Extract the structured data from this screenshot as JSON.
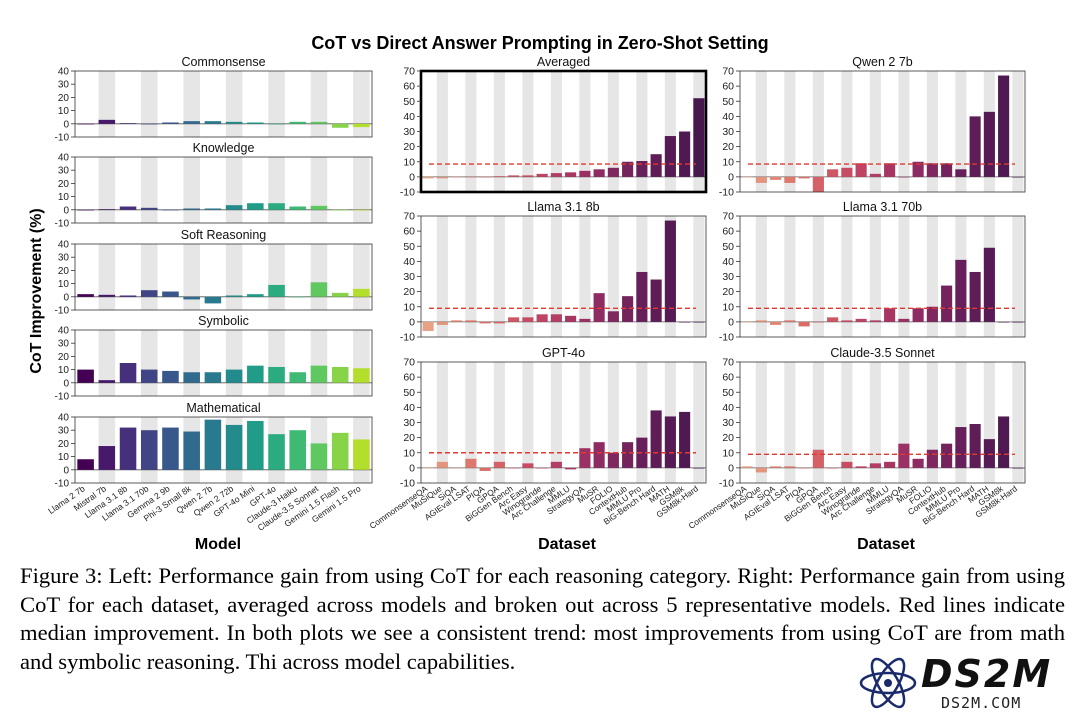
{
  "figure_title": "CoT vs Direct Answer Prompting in Zero-Shot Setting",
  "ylabel": "CoT Improvement (%)",
  "left_xlabel": "Model",
  "right_xlabel": "Dataset",
  "colors": {
    "median_line": "#e03a2f",
    "grid_band": "#e6e6e6",
    "highlight_frame": "#000000"
  },
  "chart_data": [
    {
      "type": "bar",
      "title": "Commonsense",
      "xlabel": "",
      "ylabel": "",
      "ylim": [
        -10,
        40
      ],
      "yticks": [
        -10,
        0,
        10,
        20,
        30,
        40
      ],
      "categories": [
        "Llama 2 7b",
        "Mistral 7b",
        "Llama 3.1 8b",
        "Llama 3.1 70b",
        "Gemma 2 9b",
        "Phi-3 Small 8k",
        "Qwen 2 7b",
        "Qwen 2 72b",
        "GPT-4o Mini",
        "GPT-4o",
        "Claude-3 Haiku",
        "Claude-3.5 Sonnet",
        "Gemini 1.5 Flash",
        "Gemini 1.5 Pro"
      ],
      "values": [
        0,
        3,
        0.5,
        0,
        1,
        2,
        2,
        1.5,
        1,
        0,
        1.5,
        1.5,
        -3,
        -2.5
      ]
    },
    {
      "type": "bar",
      "title": "Knowledge",
      "xlabel": "",
      "ylabel": "",
      "ylim": [
        -10,
        40
      ],
      "yticks": [
        -10,
        0,
        10,
        20,
        30,
        40
      ],
      "categories": [
        "Llama 2 7b",
        "Mistral 7b",
        "Llama 3.1 8b",
        "Llama 3.1 70b",
        "Gemma 2 9b",
        "Phi-3 Small 8k",
        "Qwen 2 7b",
        "Qwen 2 72b",
        "GPT-4o Mini",
        "GPT-4o",
        "Claude-3 Haiku",
        "Claude-3.5 Sonnet",
        "Gemini 1.5 Flash",
        "Gemini 1.5 Pro"
      ],
      "values": [
        0,
        0.5,
        2.5,
        1.5,
        0,
        1,
        1,
        3.5,
        5,
        5,
        2.5,
        3,
        0,
        0
      ]
    },
    {
      "type": "bar",
      "title": "Soft Reasoning",
      "xlabel": "",
      "ylabel": "",
      "ylim": [
        -10,
        40
      ],
      "yticks": [
        -10,
        0,
        10,
        20,
        30,
        40
      ],
      "categories": [
        "Llama 2 7b",
        "Mistral 7b",
        "Llama 3.1 8b",
        "Llama 3.1 70b",
        "Gemma 2 9b",
        "Phi-3 Small 8k",
        "Qwen 2 7b",
        "Qwen 2 72b",
        "GPT-4o Mini",
        "GPT-4o",
        "Claude-3 Haiku",
        "Claude-3.5 Sonnet",
        "Gemini 1.5 Flash",
        "Gemini 1.5 Pro"
      ],
      "values": [
        2,
        1.5,
        1,
        5,
        4,
        -2,
        -5,
        1,
        2,
        9,
        0,
        11,
        3,
        6
      ]
    },
    {
      "type": "bar",
      "title": "Symbolic",
      "xlabel": "",
      "ylabel": "",
      "ylim": [
        -10,
        40
      ],
      "yticks": [
        -10,
        0,
        10,
        20,
        30,
        40
      ],
      "categories": [
        "Llama 2 7b",
        "Mistral 7b",
        "Llama 3.1 8b",
        "Llama 3.1 70b",
        "Gemma 2 9b",
        "Phi-3 Small 8k",
        "Qwen 2 7b",
        "Qwen 2 72b",
        "GPT-4o Mini",
        "GPT-4o",
        "Claude-3 Haiku",
        "Claude-3.5 Sonnet",
        "Gemini 1.5 Flash",
        "Gemini 1.5 Pro"
      ],
      "values": [
        10,
        2,
        15,
        10,
        9,
        8,
        8,
        10,
        13,
        12,
        8,
        13,
        12,
        11
      ]
    },
    {
      "type": "bar",
      "title": "Mathematical",
      "xlabel": "Model",
      "ylabel": "",
      "ylim": [
        -10,
        40
      ],
      "yticks": [
        -10,
        0,
        10,
        20,
        30,
        40
      ],
      "categories": [
        "Llama 2 7b",
        "Mistral 7b",
        "Llama 3.1 8b",
        "Llama 3.1 70b",
        "Gemma 2 9b",
        "Phi-3 Small 8k",
        "Qwen 2 7b",
        "Qwen 2 72b",
        "GPT-4o Mini",
        "GPT-4o",
        "Claude-3 Haiku",
        "Claude-3.5 Sonnet",
        "Gemini 1.5 Flash",
        "Gemini 1.5 Pro"
      ],
      "values": [
        8,
        18,
        32,
        30,
        32,
        29,
        38,
        34,
        37,
        27,
        30,
        20,
        28,
        23
      ]
    },
    {
      "type": "bar",
      "title": "Averaged",
      "xlabel": "",
      "ylabel": "",
      "ylim": [
        -10,
        70
      ],
      "yticks": [
        -10,
        0,
        10,
        20,
        30,
        40,
        50,
        60,
        70
      ],
      "median": 8.5,
      "highlighted": true,
      "categories": [
        "CommonsenseQA",
        "MuSiQue",
        "SiQA",
        "AGIEval LSAT",
        "PIQA",
        "GPQA",
        "BiGGen Bench",
        "Arc Easy",
        "Winogrande",
        "Arc Challenge",
        "MMLU",
        "StrategyQA",
        "MuSR",
        "FOLIO",
        "ContextHub",
        "MMLU Pro",
        "BiG-Bench Hard",
        "MATH",
        "GSM8k",
        "GSM8k-Hard"
      ],
      "values": [
        -1,
        -1,
        0,
        0,
        0,
        0.5,
        1,
        1,
        2,
        2.5,
        3,
        4,
        5,
        6,
        10,
        10.5,
        15,
        27,
        30,
        52
      ]
    },
    {
      "type": "bar",
      "title": "Qwen 2 7b",
      "xlabel": "",
      "ylabel": "",
      "ylim": [
        -10,
        70
      ],
      "yticks": [
        -10,
        0,
        10,
        20,
        30,
        40,
        50,
        60,
        70
      ],
      "median": 8.5,
      "categories": [
        "CommonsenseQA",
        "MuSiQue",
        "SiQA",
        "AGIEval LSAT",
        "PIQA",
        "GPQA",
        "BiGGen Bench",
        "Arc Easy",
        "Winogrande",
        "Arc Challenge",
        "MMLU",
        "StrategyQA",
        "MuSR",
        "FOLIO",
        "ContextHub",
        "MMLU Pro",
        "BiG-Bench Hard",
        "MATH",
        "GSM8k",
        "GSM8k-Hard"
      ],
      "values": [
        0,
        -4,
        -2,
        -4,
        -1,
        -10,
        5,
        6,
        9,
        2,
        9,
        0,
        10,
        9,
        9,
        5,
        40,
        43,
        67,
        0
      ]
    },
    {
      "type": "bar",
      "title": "Llama 3.1 8b",
      "xlabel": "",
      "ylabel": "",
      "ylim": [
        -10,
        70
      ],
      "yticks": [
        -10,
        0,
        10,
        20,
        30,
        40,
        50,
        60,
        70
      ],
      "median": 9,
      "categories": [
        "CommonsenseQA",
        "MuSiQue",
        "SiQA",
        "AGIEval LSAT",
        "PIQA",
        "GPQA",
        "BiGGen Bench",
        "Arc Easy",
        "Winogrande",
        "Arc Challenge",
        "MMLU",
        "StrategyQA",
        "MuSR",
        "FOLIO",
        "ContextHub",
        "MMLU Pro",
        "BiG-Bench Hard",
        "MATH",
        "GSM8k",
        "GSM8k-Hard"
      ],
      "values": [
        -6,
        -2,
        1,
        1,
        -1,
        -1,
        3,
        3,
        5,
        5,
        4,
        2,
        19,
        7,
        17,
        33,
        28,
        67,
        0,
        0
      ]
    },
    {
      "type": "bar",
      "title": "Llama 3.1 70b",
      "xlabel": "",
      "ylabel": "",
      "ylim": [
        -10,
        70
      ],
      "yticks": [
        -10,
        0,
        10,
        20,
        30,
        40,
        50,
        60,
        70
      ],
      "median": 9,
      "categories": [
        "CommonsenseQA",
        "MuSiQue",
        "SiQA",
        "AGIEval LSAT",
        "PIQA",
        "GPQA",
        "BiGGen Bench",
        "Arc Easy",
        "Winogrande",
        "Arc Challenge",
        "MMLU",
        "StrategyQA",
        "MuSR",
        "FOLIO",
        "ContextHub",
        "MMLU Pro",
        "BiG-Bench Hard",
        "MATH",
        "GSM8k",
        "GSM8k-Hard"
      ],
      "values": [
        0,
        1,
        -2,
        1,
        -3,
        0,
        3,
        1,
        2,
        1,
        9,
        2,
        9,
        10,
        24,
        41,
        33,
        49,
        0,
        0
      ]
    },
    {
      "type": "bar",
      "title": "GPT-4o",
      "xlabel": "Dataset",
      "ylabel": "",
      "ylim": [
        -10,
        70
      ],
      "yticks": [
        -10,
        0,
        10,
        20,
        30,
        40,
        50,
        60,
        70
      ],
      "median": 10,
      "categories": [
        "CommonsenseQA",
        "MuSiQue",
        "SiQA",
        "AGIEval LSAT",
        "PIQA",
        "GPQA",
        "BiGGen Bench",
        "Arc Easy",
        "Winogrande",
        "Arc Challenge",
        "MMLU",
        "StrategyQA",
        "MuSR",
        "FOLIO",
        "ContextHub",
        "MMLU Pro",
        "BiG-Bench Hard",
        "MATH",
        "GSM8k",
        "GSM8k-Hard"
      ],
      "values": [
        0,
        4,
        0,
        6,
        -2,
        4,
        0,
        3,
        0,
        4,
        -1,
        13,
        17,
        10,
        17,
        20,
        38,
        34,
        37,
        0
      ]
    },
    {
      "type": "bar",
      "title": "Claude-3.5 Sonnet",
      "xlabel": "Dataset",
      "ylabel": "",
      "ylim": [
        -10,
        70
      ],
      "yticks": [
        -10,
        0,
        10,
        20,
        30,
        40,
        50,
        60,
        70
      ],
      "median": 9,
      "categories": [
        "CommonsenseQA",
        "MuSiQue",
        "SiQA",
        "AGIEval LSAT",
        "PIQA",
        "GPQA",
        "BiGGen Bench",
        "Arc Easy",
        "Winogrande",
        "Arc Challenge",
        "MMLU",
        "StrategyQA",
        "MuSR",
        "FOLIO",
        "ContextHub",
        "MMLU Pro",
        "BiG-Bench Hard",
        "MATH",
        "GSM8k",
        "GSM8k-Hard"
      ],
      "values": [
        1,
        -3,
        1,
        1,
        0,
        12,
        0,
        4,
        1,
        3,
        4,
        16,
        6,
        12,
        16,
        27,
        29,
        19,
        34,
        0
      ]
    }
  ],
  "caption": [
    "Figure 3: Left: Performance gain from using CoT for each reasoning category. Right: Performance",
    "gain from using CoT for each dataset, averaged across models and broken out across 5 representative",
    "models. Red lines indicate median improvement. In both plots we see a consistent trend: most",
    "improvements from using CoT are from math and symbolic reasoning. Thi",
    "across model capabilities."
  ],
  "watermark": {
    "logo": "DS2M",
    "url": "DS2M.COM",
    "logo_icon": "atom-icon"
  }
}
